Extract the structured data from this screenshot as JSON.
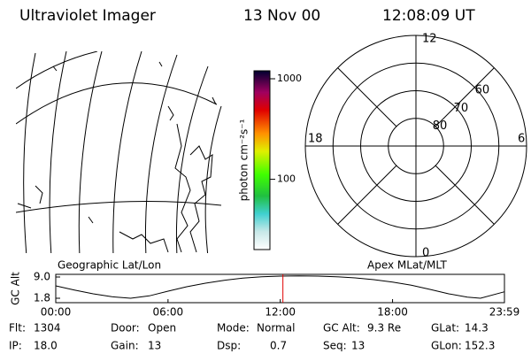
{
  "header": {
    "title": "Ultraviolet Imager",
    "date": "13 Nov 00",
    "time": "12:08:09 UT"
  },
  "map": {
    "label": "Geographic Lat/Lon"
  },
  "colorbar": {
    "label": "photon cm⁻²s⁻¹",
    "log_scale": true,
    "lim": [
      20,
      1200
    ],
    "ticks": [
      100,
      1000
    ]
  },
  "polar": {
    "label": "Apex MLat/MLT",
    "rlim": [
      90,
      50
    ],
    "rings": [
      80,
      70,
      60
    ],
    "mlt_ticks": [
      12,
      18,
      6,
      0
    ]
  },
  "altitude": {
    "ylabel": "GC Alt",
    "ylim": [
      0.3,
      9.9
    ],
    "yticks": [
      {
        "value": 9.0,
        "label": "9.0"
      },
      {
        "value": 1.8,
        "label": "1.8"
      }
    ],
    "xlim": [
      0,
      23.98
    ],
    "xticks": [
      {
        "value": 0,
        "label": "00:00"
      },
      {
        "value": 6,
        "label": "06:00"
      },
      {
        "value": 12,
        "label": "12:00"
      },
      {
        "value": 18,
        "label": "18:00"
      },
      {
        "value": 23.98,
        "label": "23:59"
      }
    ],
    "current_time": 12.14,
    "marker_color": "#e00000",
    "x": [
      0,
      1,
      2,
      3,
      4,
      5,
      6,
      7,
      8,
      9,
      10,
      11,
      12,
      13,
      14,
      15,
      16,
      17,
      18,
      19,
      20,
      21,
      22,
      22.7,
      23.98
    ],
    "values": [
      6.0,
      4.6,
      3.3,
      2.3,
      1.8,
      2.6,
      4.2,
      5.7,
      6.9,
      7.9,
      8.6,
      9.1,
      9.3,
      9.4,
      9.3,
      9.1,
      8.7,
      8.1,
      7.3,
      6.2,
      4.8,
      3.3,
      2.2,
      1.8,
      4.0
    ]
  },
  "info": [
    {
      "label": "Flt:",
      "value": "1304"
    },
    {
      "label": "Door:",
      "value": "Open"
    },
    {
      "label": "Mode:",
      "value": "Normal"
    },
    {
      "label": "GC Alt:",
      "value": "9.3 Re"
    },
    {
      "label": "GLat:",
      "value": "14.3"
    },
    {
      "label": "IP:",
      "value": "18.0"
    },
    {
      "label": "Gain:",
      "value": "13"
    },
    {
      "label": "Dsp:",
      "value": "0.7"
    },
    {
      "label": "Seq:",
      "value": "13"
    },
    {
      "label": "GLon:",
      "value": "152.3"
    }
  ]
}
